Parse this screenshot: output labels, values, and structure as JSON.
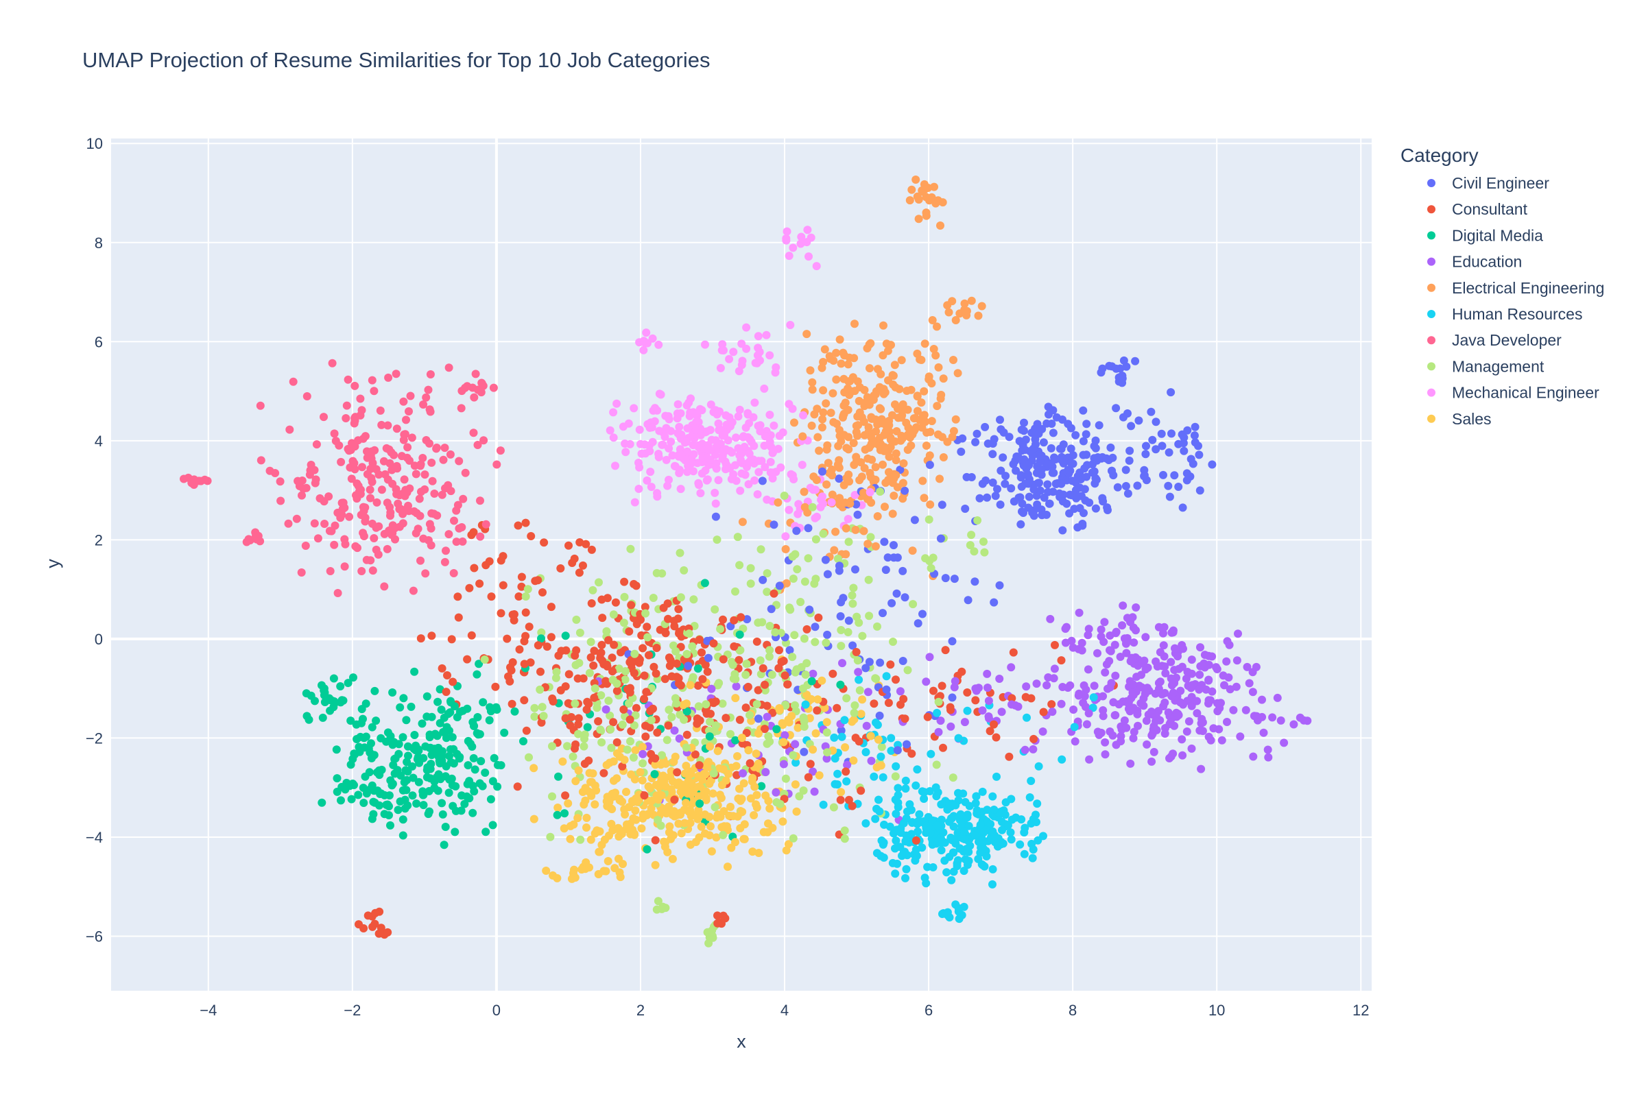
{
  "chart_data": {
    "type": "scatter",
    "title": "UMAP Projection of Resume Similarities for Top 10 Job Categories",
    "xlabel": "x",
    "ylabel": "y",
    "xlim": [
      -5.35,
      12.15
    ],
    "ylim": [
      -7.1,
      10.1
    ],
    "xticks": [
      -4,
      -2,
      0,
      2,
      4,
      6,
      8,
      10,
      12
    ],
    "yticks": [
      -6,
      -4,
      -2,
      0,
      2,
      4,
      6,
      8,
      10
    ],
    "xtick_labels": [
      "−4",
      "−2",
      "0",
      "2",
      "4",
      "6",
      "8",
      "10",
      "12"
    ],
    "ytick_labels": [
      "−6",
      "−4",
      "−2",
      "0",
      "2",
      "4",
      "6",
      "8",
      "10"
    ],
    "grid": true,
    "plot_bgcolor": "#E5ECF6",
    "legend": {
      "title": "Category",
      "placement": "right"
    },
    "series": [
      {
        "name": "Civil Engineer",
        "color": "#636EFA",
        "clusters": [
          {
            "cx": 7.7,
            "cy": 3.4,
            "sx": 0.55,
            "sy": 0.6,
            "n": 230
          },
          {
            "cx": 9.4,
            "cy": 3.8,
            "sx": 0.3,
            "sy": 0.5,
            "n": 40
          },
          {
            "cx": 8.6,
            "cy": 5.4,
            "sx": 0.15,
            "sy": 0.15,
            "n": 15
          },
          {
            "cx": 5.4,
            "cy": 1.5,
            "sx": 1.0,
            "sy": 1.1,
            "n": 60
          },
          {
            "cx": 4.2,
            "cy": -0.8,
            "sx": 1.0,
            "sy": 0.9,
            "n": 35
          }
        ]
      },
      {
        "name": "Consultant",
        "color": "#EF553B",
        "clusters": [
          {
            "cx": 1.8,
            "cy": -0.6,
            "sx": 1.2,
            "sy": 0.8,
            "n": 230
          },
          {
            "cx": 0.5,
            "cy": 1.4,
            "sx": 0.6,
            "sy": 0.6,
            "n": 40
          },
          {
            "cx": 3.5,
            "cy": -1.8,
            "sx": 1.5,
            "sy": 1.1,
            "n": 90
          },
          {
            "cx": 6.5,
            "cy": -1.2,
            "sx": 0.9,
            "sy": 0.5,
            "n": 40
          },
          {
            "cx": -1.7,
            "cy": -5.8,
            "sx": 0.12,
            "sy": 0.15,
            "n": 12
          },
          {
            "cx": 3.1,
            "cy": -5.7,
            "sx": 0.06,
            "sy": 0.12,
            "n": 6
          }
        ]
      },
      {
        "name": "Digital Media",
        "color": "#00CC96",
        "clusters": [
          {
            "cx": -1.0,
            "cy": -2.4,
            "sx": 0.6,
            "sy": 0.75,
            "n": 230
          },
          {
            "cx": -2.3,
            "cy": -1.2,
            "sx": 0.15,
            "sy": 0.2,
            "n": 25
          },
          {
            "cx": -1.8,
            "cy": -3.1,
            "sx": 0.25,
            "sy": 0.15,
            "n": 20
          },
          {
            "cx": 2.5,
            "cy": -1.5,
            "sx": 1.5,
            "sy": 1.2,
            "n": 40
          }
        ]
      },
      {
        "name": "Education",
        "color": "#AB63FA",
        "clusters": [
          {
            "cx": 9.3,
            "cy": -1.2,
            "sx": 0.7,
            "sy": 0.6,
            "n": 260
          },
          {
            "cx": 8.7,
            "cy": 0.1,
            "sx": 0.45,
            "sy": 0.25,
            "n": 40
          },
          {
            "cx": 11.0,
            "cy": -1.65,
            "sx": 0.12,
            "sy": 0.05,
            "n": 6
          },
          {
            "cx": 6.8,
            "cy": -1.3,
            "sx": 0.6,
            "sy": 0.6,
            "n": 40
          },
          {
            "cx": 3.8,
            "cy": -1.8,
            "sx": 1.2,
            "sy": 0.9,
            "n": 45
          }
        ]
      },
      {
        "name": "Electrical Engineering",
        "color": "#FFA15A",
        "clusters": [
          {
            "cx": 5.3,
            "cy": 4.3,
            "sx": 0.55,
            "sy": 0.9,
            "n": 290
          },
          {
            "cx": 6.0,
            "cy": 8.8,
            "sx": 0.12,
            "sy": 0.25,
            "n": 22
          },
          {
            "cx": 6.5,
            "cy": 6.6,
            "sx": 0.15,
            "sy": 0.15,
            "n": 12
          },
          {
            "cx": 4.8,
            "cy": 2.0,
            "sx": 0.8,
            "sy": 0.8,
            "n": 30
          }
        ]
      },
      {
        "name": "Human Resources",
        "color": "#19D3F3",
        "clusters": [
          {
            "cx": 6.3,
            "cy": -3.9,
            "sx": 0.55,
            "sy": 0.45,
            "n": 260
          },
          {
            "cx": 6.3,
            "cy": -5.5,
            "sx": 0.1,
            "sy": 0.1,
            "n": 12
          },
          {
            "cx": 5.0,
            "cy": -2.2,
            "sx": 0.6,
            "sy": 0.7,
            "n": 40
          },
          {
            "cx": 7.0,
            "cy": -2.0,
            "sx": 0.6,
            "sy": 0.6,
            "n": 15
          }
        ]
      },
      {
        "name": "Java Developer",
        "color": "#FF6692",
        "clusters": [
          {
            "cx": -1.6,
            "cy": 3.2,
            "sx": 0.7,
            "sy": 1.0,
            "n": 260
          },
          {
            "cx": -4.2,
            "cy": 3.22,
            "sx": 0.08,
            "sy": 0.06,
            "n": 10
          },
          {
            "cx": -3.4,
            "cy": 2.05,
            "sx": 0.12,
            "sy": 0.05,
            "n": 8
          },
          {
            "cx": -0.2,
            "cy": 5.1,
            "sx": 0.15,
            "sy": 0.1,
            "n": 10
          }
        ]
      },
      {
        "name": "Management",
        "color": "#B6E880",
        "clusters": [
          {
            "cx": 3.0,
            "cy": -1.0,
            "sx": 1.5,
            "sy": 1.4,
            "n": 300
          },
          {
            "cx": 4.5,
            "cy": 1.5,
            "sx": 0.6,
            "sy": 0.7,
            "n": 30
          },
          {
            "cx": 3.0,
            "cy": -6.0,
            "sx": 0.05,
            "sy": 0.2,
            "n": 8
          },
          {
            "cx": 2.3,
            "cy": -5.4,
            "sx": 0.06,
            "sy": 0.08,
            "n": 5
          },
          {
            "cx": 6.5,
            "cy": 2.0,
            "sx": 0.3,
            "sy": 0.3,
            "n": 10
          }
        ]
      },
      {
        "name": "Mechanical Engineer",
        "color": "#FF97FF",
        "clusters": [
          {
            "cx": 2.9,
            "cy": 3.9,
            "sx": 0.6,
            "sy": 0.5,
            "n": 260
          },
          {
            "cx": 3.5,
            "cy": 5.8,
            "sx": 0.3,
            "sy": 0.25,
            "n": 25
          },
          {
            "cx": 4.2,
            "cy": 7.9,
            "sx": 0.15,
            "sy": 0.2,
            "n": 12
          },
          {
            "cx": 2.1,
            "cy": 6.0,
            "sx": 0.1,
            "sy": 0.1,
            "n": 8
          },
          {
            "cx": 4.3,
            "cy": 2.8,
            "sx": 0.4,
            "sy": 0.4,
            "n": 30
          }
        ]
      },
      {
        "name": "Sales",
        "color": "#FECB52",
        "clusters": [
          {
            "cx": 2.4,
            "cy": -3.3,
            "sx": 0.8,
            "sy": 0.55,
            "n": 320
          },
          {
            "cx": 1.3,
            "cy": -4.7,
            "sx": 0.3,
            "sy": 0.08,
            "n": 20
          },
          {
            "cx": 4.0,
            "cy": -1.8,
            "sx": 0.7,
            "sy": 0.6,
            "n": 60
          }
        ]
      }
    ]
  }
}
